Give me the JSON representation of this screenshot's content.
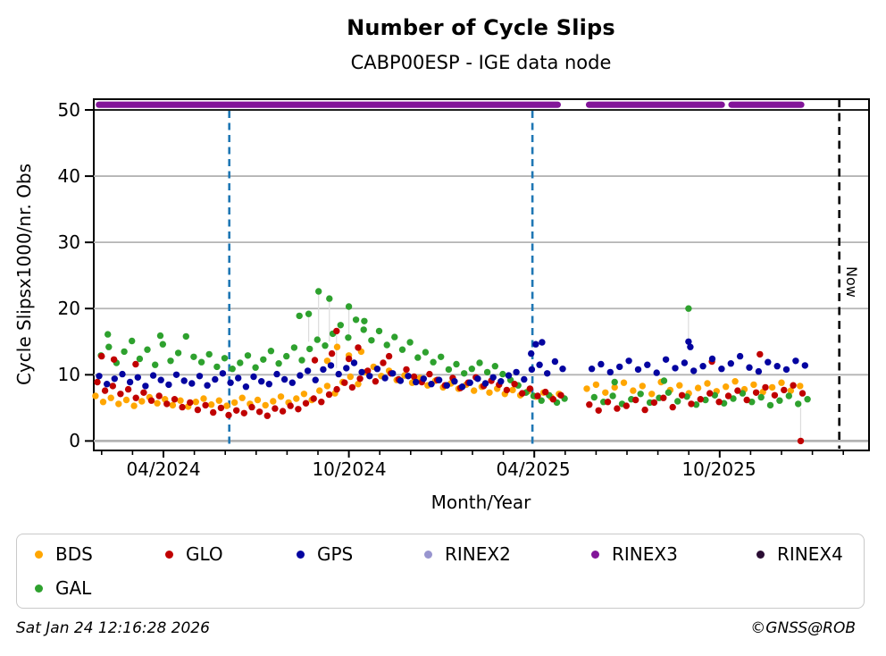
{
  "header": {
    "title": "Number of Cycle Slips",
    "subtitle": "CABP00ESP - IGE data node"
  },
  "axes": {
    "ylabel": "Cycle Slipsx1000/nr. Obs",
    "xlabel": "Month/Year",
    "yticks": [
      0,
      10,
      20,
      30,
      40,
      50
    ],
    "xticks": [
      "04/2024",
      "10/2024",
      "04/2025",
      "10/2025"
    ],
    "now_label": "Now"
  },
  "legend": [
    {
      "label": "BDS",
      "color": "#FFA600"
    },
    {
      "label": "GLO",
      "color": "#C00000"
    },
    {
      "label": "GPS",
      "color": "#0404A0"
    },
    {
      "label": "RINEX2",
      "color": "#9895CF"
    },
    {
      "label": "RINEX3",
      "color": "#821599"
    },
    {
      "label": "RINEX4",
      "color": "#2A0D33"
    },
    {
      "label": "GAL",
      "color": "#2EA12E"
    }
  ],
  "footer": {
    "timestamp": "Sat Jan 24 12:16:28 2026",
    "credit": "©GNSS@ROB"
  },
  "chart_data": {
    "type": "scatter",
    "title": "Number of Cycle Slips",
    "subtitle": "CABP00ESP - IGE data node",
    "xlabel": "Month/Year",
    "ylabel": "Cycle Slipsx1000/nr. Obs",
    "x_unit": "months_since_jan_2024",
    "xlim_months": [
      0.75,
      25.8
    ],
    "ylim": [
      0,
      50
    ],
    "ytick_values": [
      0,
      10,
      20,
      30,
      40,
      50
    ],
    "gridline_values": [
      0,
      10,
      20,
      30,
      40
    ],
    "top_rule_value": 50,
    "xticks": [
      {
        "month": 3,
        "label": "04/2024"
      },
      {
        "month": 9,
        "label": "10/2024"
      },
      {
        "month": 15,
        "label": "04/2025"
      },
      {
        "month": 21,
        "label": "10/2025"
      }
    ],
    "minor_ticks_every_month": {
      "from": 1,
      "to": 25
    },
    "grid": "horizontal-only",
    "legend_position": "below",
    "vlines": [
      {
        "x_month": 5.13,
        "color": "#1f77b4",
        "style": "dashed"
      },
      {
        "x_month": 14.94,
        "color": "#1f77b4",
        "style": "dashed"
      }
    ],
    "now_line": {
      "x_month": 24.87,
      "label": "Now",
      "color": "#000000",
      "style": "dashed"
    },
    "rinex3_band": {
      "value": 50.9,
      "color": "#821599",
      "segments": [
        [
          0.81,
          15.86
        ],
        [
          16.67,
          21.17
        ],
        [
          21.28,
          23.74
        ]
      ]
    },
    "stems": [
      [
        8.02,
        22.6,
        15.5
      ],
      [
        8.37,
        21.5,
        15.0
      ],
      [
        9.0,
        20.3,
        15.5
      ],
      [
        8.6,
        16.6,
        11.0
      ],
      [
        7.7,
        19.2,
        15.0
      ],
      [
        19.99,
        20.0,
        14.0
      ],
      [
        23.62,
        5.0,
        0.0
      ]
    ],
    "series": [
      {
        "name": "BDS",
        "color": "#FFA600",
        "seg1": {
          "start": 0.8,
          "step": 0.25,
          "values": [
            6.8,
            5.9,
            6.5,
            5.6,
            6.2,
            5.3,
            6.0,
            6.6,
            5.7,
            6.3,
            5.4,
            6.1,
            5.2,
            5.9,
            6.4,
            5.5,
            6.1,
            5.3,
            5.8,
            6.5,
            5.6,
            6.2,
            5.4,
            6.0,
            6.7,
            5.8,
            6.4,
            7.1,
            6.2,
            7.6,
            8.3,
            7.2,
            8.9,
            9.7,
            8.6,
            10.4,
            11.2,
            9.8,
            10.6,
            9.2,
            9.9,
            8.8,
            9.5,
            8.4,
            9.1,
            8.1,
            8.7,
            7.9,
            8.5,
            7.6,
            8.2,
            7.3,
            7.9,
            7.1,
            7.7,
            6.9,
            7.5,
            6.7,
            7.3,
            6.6,
            7.1
          ]
        },
        "seg2": {
          "start": 16.7,
          "step": 0.3,
          "values": [
            7.9,
            8.5,
            7.3,
            8.1,
            8.8,
            7.6,
            8.3,
            7.1,
            8.9,
            7.7,
            8.4,
            7.2,
            8.0,
            8.7,
            7.5,
            8.2,
            9.0,
            7.8,
            8.5,
            7.4,
            8.1,
            8.8,
            7.6,
            8.3
          ]
        },
        "extra": [
          [
            8.62,
            14.2
          ],
          [
            9.0,
            12.9
          ],
          [
            9.4,
            13.5
          ],
          [
            8.3,
            12.1
          ]
        ]
      },
      {
        "name": "GAL",
        "color": "#2EA12E",
        "seg1": {
          "start": 0.98,
          "step": 0.25,
          "values": [
            12.9,
            14.2,
            11.8,
            13.5,
            15.1,
            12.4,
            13.8,
            11.5,
            14.6,
            12.1,
            13.3,
            15.8,
            12.7,
            11.9,
            13.1,
            11.2,
            12.5,
            10.9,
            11.8,
            12.9,
            11.1,
            12.3,
            13.6,
            11.7,
            12.8,
            14.1,
            12.2,
            13.9,
            15.3,
            14.4,
            16.2,
            17.5,
            15.6,
            18.3,
            16.8,
            15.2,
            16.6,
            14.5,
            15.7,
            13.8,
            14.9,
            12.6,
            13.4,
            11.9,
            12.7,
            10.8,
            11.6,
            10.2,
            10.9,
            11.8,
            10.4,
            11.3,
            10.1,
            9.2,
            8.4,
            7.3,
            6.8,
            6.1,
            6.9,
            5.8,
            6.4
          ]
        },
        "seg2": {
          "start": 16.94,
          "step": 0.3,
          "values": [
            6.6,
            5.9,
            6.8,
            5.6,
            6.3,
            7.1,
            5.8,
            6.5,
            7.3,
            6.0,
            6.7,
            5.5,
            6.2,
            6.9,
            5.7,
            6.4,
            7.2,
            5.9,
            6.6,
            5.4,
            6.1,
            6.8,
            5.6,
            6.3
          ]
        },
        "extra": [
          [
            1.2,
            16.1
          ],
          [
            2.9,
            15.9
          ],
          [
            7.4,
            18.9
          ],
          [
            7.7,
            19.2
          ],
          [
            8.02,
            22.6
          ],
          [
            8.37,
            21.5
          ],
          [
            9.0,
            20.3
          ],
          [
            9.5,
            18.1
          ],
          [
            17.6,
            8.9
          ],
          [
            19.2,
            9.1
          ],
          [
            19.99,
            20.0
          ]
        ]
      },
      {
        "name": "GLO",
        "color": "#C00000",
        "seg1": {
          "start": 0.86,
          "step": 0.25,
          "values": [
            8.9,
            7.6,
            8.3,
            7.1,
            7.8,
            6.5,
            7.3,
            6.1,
            6.8,
            5.6,
            6.3,
            5.1,
            5.8,
            4.7,
            5.4,
            4.3,
            5.0,
            3.9,
            4.6,
            4.2,
            5.1,
            4.4,
            3.8,
            4.9,
            4.5,
            5.3,
            4.8,
            5.7,
            6.4,
            5.9,
            7.0,
            7.8,
            8.8,
            8.1,
            9.4,
            10.6,
            9.0,
            11.8,
            10.2,
            9.3,
            10.8,
            9.7,
            8.9,
            10.1,
            9.2,
            8.4,
            9.5,
            8.0,
            8.8,
            9.6,
            8.3,
            9.1,
            8.5,
            7.7,
            8.6,
            7.2,
            7.9,
            6.8,
            7.4,
            6.3,
            6.9
          ]
        },
        "seg2": {
          "start": 16.78,
          "step": 0.3,
          "values": [
            5.5,
            4.6,
            5.9,
            4.9,
            5.3,
            6.2,
            4.7,
            5.8,
            6.5,
            5.1,
            6.9,
            5.6,
            6.3,
            7.2,
            5.9,
            6.8,
            7.6,
            6.2,
            7.3,
            8.1,
            6.9,
            7.7,
            8.4,
            7.2
          ]
        },
        "extra": [
          [
            1.0,
            12.8
          ],
          [
            1.4,
            12.3
          ],
          [
            2.1,
            11.6
          ],
          [
            8.45,
            13.2
          ],
          [
            8.6,
            16.6
          ],
          [
            9.0,
            12.4
          ],
          [
            9.3,
            14.1
          ],
          [
            7.9,
            12.2
          ],
          [
            10.3,
            12.8
          ],
          [
            20.75,
            12.0
          ],
          [
            22.3,
            13.1
          ],
          [
            23.62,
            0.0
          ]
        ]
      },
      {
        "name": "GPS",
        "color": "#0404A0",
        "seg1": {
          "start": 0.92,
          "step": 0.25,
          "values": [
            9.8,
            8.6,
            9.4,
            10.1,
            8.9,
            9.6,
            8.3,
            9.9,
            9.2,
            8.5,
            10.0,
            9.1,
            8.7,
            9.8,
            8.4,
            9.3,
            10.2,
            8.8,
            9.5,
            8.2,
            9.7,
            9.0,
            8.6,
            10.1,
            9.3,
            8.8,
            9.9,
            10.6,
            9.2,
            10.8,
            11.4,
            10.1,
            11.0,
            11.8,
            10.4,
            9.8,
            10.9,
            9.5,
            10.2,
            9.1,
            9.8,
            8.9,
            9.4,
            8.6,
            9.2,
            8.4,
            9.0,
            8.2,
            8.8,
            9.4,
            8.7,
            9.6,
            9.0,
            9.9,
            10.4,
            9.3,
            10.8,
            11.5,
            10.2,
            12.0,
            10.9
          ]
        },
        "seg2": {
          "start": 16.86,
          "step": 0.3,
          "values": [
            10.9,
            11.6,
            10.4,
            11.2,
            12.1,
            10.8,
            11.5,
            10.3,
            12.3,
            11.0,
            11.8,
            10.6,
            11.3,
            12.4,
            10.9,
            11.7,
            12.8,
            11.1,
            10.5,
            11.9,
            11.3,
            10.8,
            12.1,
            11.4
          ]
        },
        "extra": [
          [
            15.05,
            14.6
          ],
          [
            15.25,
            14.9
          ],
          [
            14.9,
            13.2
          ],
          [
            19.99,
            15.0
          ],
          [
            20.05,
            14.2
          ]
        ]
      }
    ]
  }
}
